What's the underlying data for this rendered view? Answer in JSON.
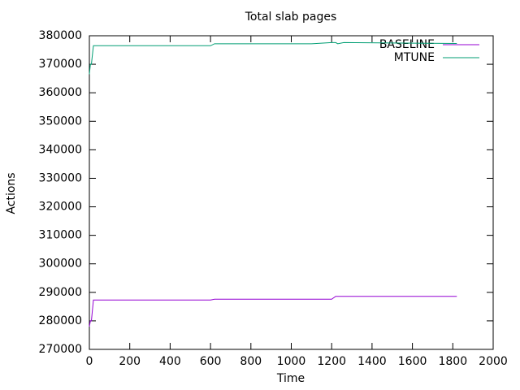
{
  "chart_data": {
    "type": "line",
    "title": "Total slab pages",
    "xlabel": "Time",
    "ylabel": "Actions",
    "x": [
      0,
      5,
      10,
      20,
      600,
      620,
      1100,
      1200,
      1220,
      1230,
      1260,
      1820
    ],
    "series": [
      {
        "name": "BASELINE",
        "color": "#9400d3",
        "values": [
          278000,
          280000,
          280000,
          287300,
          287300,
          287600,
          287600,
          287600,
          288600,
          288600,
          288600,
          288600
        ]
      },
      {
        "name": "MTUNE",
        "color": "#009e73",
        "values": [
          366500,
          370000,
          370000,
          376500,
          376500,
          377200,
          377200,
          377600,
          377600,
          377200,
          377600,
          377300
        ]
      }
    ],
    "xlim": [
      0,
      2000
    ],
    "xticks": [
      0,
      200,
      400,
      600,
      800,
      1000,
      1200,
      1400,
      1600,
      1800,
      2000
    ],
    "ylim": [
      270000,
      380000
    ],
    "yticks": [
      270000,
      280000,
      290000,
      300000,
      310000,
      320000,
      330000,
      340000,
      350000,
      360000,
      370000,
      380000
    ],
    "legend": "top-right"
  }
}
